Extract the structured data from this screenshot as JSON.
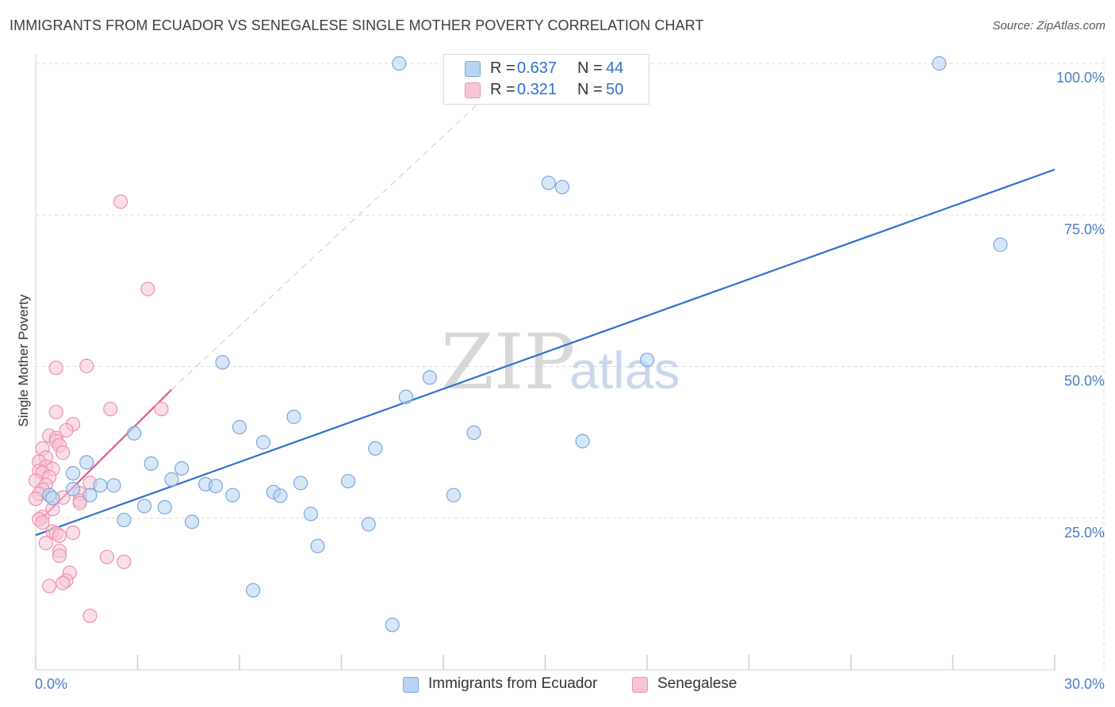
{
  "title": "IMMIGRANTS FROM ECUADOR VS SENEGALESE SINGLE MOTHER POVERTY CORRELATION CHART",
  "source": "Source: ZipAtlas.com",
  "watermark": {
    "zip": "ZIP",
    "atlas": "atlas"
  },
  "colors": {
    "blue_fill": "#b8d3f3",
    "blue_stroke": "#7aa6df",
    "blue_line": "#2f6fd0",
    "pink_fill": "#f8c5d6",
    "pink_stroke": "#ee8fb0",
    "pink_line": "#e05c8a",
    "grid": "#d9d9d9",
    "tick_text": "#4a7cc7"
  },
  "legend": {
    "rows": [
      {
        "r_label": "R =",
        "r_value": "0.637",
        "n_label": "N =",
        "n_value": "44"
      },
      {
        "r_label": "R =",
        "r_value": "0.321",
        "n_label": "N =",
        "n_value": "50"
      }
    ]
  },
  "chart_data": {
    "type": "scatter",
    "title": "IMMIGRANTS FROM ECUADOR VS SENEGALESE SINGLE MOTHER POVERTY CORRELATION CHART",
    "xlabel": "",
    "ylabel": "Single Mother Poverty",
    "xlim": [
      0,
      30
    ],
    "ylim": [
      0,
      105
    ],
    "x_tick_labels": [
      {
        "value": 0,
        "label": "0.0%"
      },
      {
        "value": 30,
        "label": "30.0%"
      }
    ],
    "y_tick_labels": [
      {
        "value": 25,
        "label": "25.0%"
      },
      {
        "value": 50,
        "label": "50.0%"
      },
      {
        "value": 75,
        "label": "75.0%"
      },
      {
        "value": 100,
        "label": "100.0%"
      }
    ],
    "grid": true,
    "legend_position": "top-center",
    "series": [
      {
        "name": "Immigrants from Ecuador",
        "color": "#7aa6df",
        "r": 0.637,
        "n": 44,
        "trend": {
          "x": [
            0,
            30
          ],
          "y": [
            22.2,
            82.5
          ]
        },
        "points": [
          {
            "x": 10.7,
            "y": 100
          },
          {
            "x": 26.6,
            "y": 100
          },
          {
            "x": 15.1,
            "y": 80.3
          },
          {
            "x": 15.5,
            "y": 79.6
          },
          {
            "x": 28.4,
            "y": 70.1
          },
          {
            "x": 5.5,
            "y": 50.7
          },
          {
            "x": 18.0,
            "y": 51.1
          },
          {
            "x": 11.6,
            "y": 48.2
          },
          {
            "x": 10.9,
            "y": 45.0
          },
          {
            "x": 7.6,
            "y": 41.7
          },
          {
            "x": 6.0,
            "y": 40.0
          },
          {
            "x": 2.9,
            "y": 39.0
          },
          {
            "x": 12.9,
            "y": 39.1
          },
          {
            "x": 6.7,
            "y": 37.5
          },
          {
            "x": 16.1,
            "y": 37.7
          },
          {
            "x": 10.0,
            "y": 36.5
          },
          {
            "x": 1.5,
            "y": 34.2
          },
          {
            "x": 3.4,
            "y": 34.0
          },
          {
            "x": 4.3,
            "y": 33.2
          },
          {
            "x": 1.1,
            "y": 32.4
          },
          {
            "x": 4.0,
            "y": 31.4
          },
          {
            "x": 9.2,
            "y": 31.1
          },
          {
            "x": 7.8,
            "y": 30.8
          },
          {
            "x": 5.0,
            "y": 30.6
          },
          {
            "x": 5.3,
            "y": 30.3
          },
          {
            "x": 1.9,
            "y": 30.4
          },
          {
            "x": 2.3,
            "y": 30.4
          },
          {
            "x": 1.1,
            "y": 29.8
          },
          {
            "x": 0.4,
            "y": 28.8
          },
          {
            "x": 0.5,
            "y": 28.3
          },
          {
            "x": 7.0,
            "y": 29.3
          },
          {
            "x": 7.2,
            "y": 28.7
          },
          {
            "x": 5.8,
            "y": 28.8
          },
          {
            "x": 12.3,
            "y": 28.8
          },
          {
            "x": 1.6,
            "y": 28.8
          },
          {
            "x": 3.2,
            "y": 27.0
          },
          {
            "x": 3.8,
            "y": 26.8
          },
          {
            "x": 8.1,
            "y": 25.7
          },
          {
            "x": 2.6,
            "y": 24.7
          },
          {
            "x": 4.6,
            "y": 24.4
          },
          {
            "x": 9.8,
            "y": 24.0
          },
          {
            "x": 8.3,
            "y": 20.4
          },
          {
            "x": 6.4,
            "y": 13.1
          },
          {
            "x": 10.5,
            "y": 7.4
          }
        ]
      },
      {
        "name": "Senegalese",
        "color": "#ee8fb0",
        "r": 0.321,
        "n": 50,
        "trend": {
          "x": [
            0.1,
            4.0
          ],
          "y": [
            24.5,
            46.2
          ]
        },
        "trend_extension": {
          "x": [
            4.0,
            14.3
          ],
          "y": [
            46.2,
            100
          ]
        },
        "points": [
          {
            "x": 2.5,
            "y": 77.2
          },
          {
            "x": 3.3,
            "y": 62.8
          },
          {
            "x": 0.6,
            "y": 49.8
          },
          {
            "x": 1.5,
            "y": 50.1
          },
          {
            "x": 2.2,
            "y": 43.0
          },
          {
            "x": 3.7,
            "y": 43.0
          },
          {
            "x": 0.6,
            "y": 42.5
          },
          {
            "x": 1.1,
            "y": 40.5
          },
          {
            "x": 0.9,
            "y": 39.5
          },
          {
            "x": 0.4,
            "y": 38.6
          },
          {
            "x": 0.6,
            "y": 38.2
          },
          {
            "x": 0.6,
            "y": 37.7
          },
          {
            "x": 0.7,
            "y": 37.0
          },
          {
            "x": 0.2,
            "y": 36.5
          },
          {
            "x": 0.8,
            "y": 35.8
          },
          {
            "x": 0.3,
            "y": 35.0
          },
          {
            "x": 0.1,
            "y": 34.3
          },
          {
            "x": 0.3,
            "y": 33.5
          },
          {
            "x": 0.5,
            "y": 33.1
          },
          {
            "x": 0.1,
            "y": 32.8
          },
          {
            "x": 0.2,
            "y": 32.5
          },
          {
            "x": 0.4,
            "y": 31.8
          },
          {
            "x": 0.0,
            "y": 31.2
          },
          {
            "x": 0.3,
            "y": 30.5
          },
          {
            "x": 1.6,
            "y": 30.8
          },
          {
            "x": 0.2,
            "y": 29.7
          },
          {
            "x": 0.1,
            "y": 29.0
          },
          {
            "x": 1.3,
            "y": 29.1
          },
          {
            "x": 0.8,
            "y": 28.4
          },
          {
            "x": 0.0,
            "y": 28.2
          },
          {
            "x": 1.3,
            "y": 27.9
          },
          {
            "x": 1.3,
            "y": 27.5
          },
          {
            "x": 0.5,
            "y": 26.5
          },
          {
            "x": 0.2,
            "y": 25.2
          },
          {
            "x": 0.1,
            "y": 24.8
          },
          {
            "x": 0.2,
            "y": 24.3
          },
          {
            "x": 0.5,
            "y": 22.8
          },
          {
            "x": 1.1,
            "y": 22.6
          },
          {
            "x": 0.6,
            "y": 22.5
          },
          {
            "x": 0.7,
            "y": 22.1
          },
          {
            "x": 0.3,
            "y": 20.9
          },
          {
            "x": 0.7,
            "y": 19.6
          },
          {
            "x": 2.1,
            "y": 18.6
          },
          {
            "x": 0.7,
            "y": 18.8
          },
          {
            "x": 2.6,
            "y": 17.8
          },
          {
            "x": 1.0,
            "y": 16.0
          },
          {
            "x": 0.9,
            "y": 14.7
          },
          {
            "x": 0.8,
            "y": 14.3
          },
          {
            "x": 0.4,
            "y": 13.8
          },
          {
            "x": 1.6,
            "y": 8.9
          }
        ]
      }
    ]
  }
}
